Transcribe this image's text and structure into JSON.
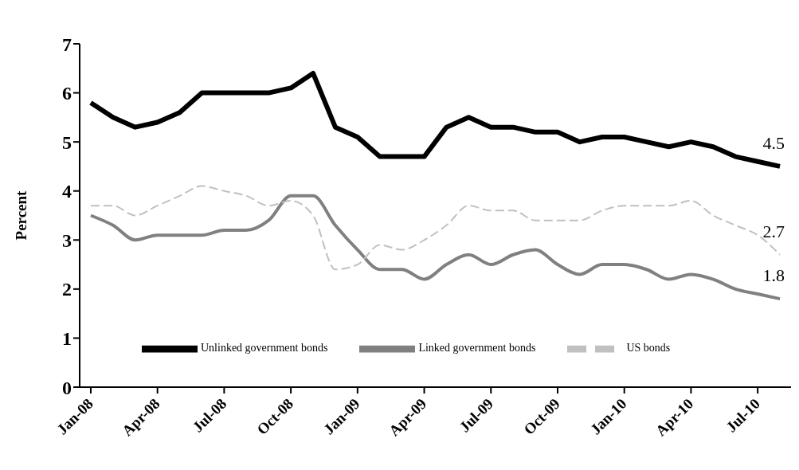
{
  "chart_data": {
    "type": "line",
    "ylabel": "Percent",
    "categories": [
      "Jan-08",
      null,
      null,
      "Apr-08",
      null,
      null,
      "Jul-08",
      null,
      null,
      "Oct-08",
      null,
      null,
      "Jan-09",
      null,
      null,
      "Apr-09",
      null,
      null,
      "Jul-09",
      null,
      null,
      "Oct-09",
      null,
      null,
      "Jan-10",
      null,
      null,
      "Apr-10",
      null,
      null,
      "Jul-10",
      null
    ],
    "series": [
      {
        "name": "Unlinked government bonds",
        "color": "#000000",
        "line_style": "solid",
        "values": [
          5.8,
          5.5,
          5.3,
          5.4,
          5.6,
          6.0,
          6.0,
          6.0,
          6.0,
          6.1,
          6.4,
          5.3,
          5.1,
          4.7,
          4.7,
          4.7,
          5.3,
          5.5,
          5.3,
          5.3,
          5.2,
          5.2,
          5.0,
          5.1,
          5.1,
          5.0,
          4.9,
          5.0,
          4.9,
          4.7,
          4.6,
          4.5
        ],
        "value_labels": [
          null,
          null,
          null,
          null,
          null,
          null,
          null,
          null,
          null,
          null,
          null,
          null,
          null,
          null,
          null,
          null,
          null,
          null,
          null,
          null,
          null,
          null,
          null,
          null,
          null,
          null,
          null,
          null,
          null,
          null,
          null,
          "4.5"
        ]
      },
      {
        "name": "Linked government bonds",
        "color": "#808080",
        "line_style": "solid",
        "values": [
          3.5,
          3.3,
          3.0,
          3.1,
          3.1,
          3.1,
          3.2,
          3.2,
          3.4,
          3.9,
          3.9,
          3.3,
          2.8,
          2.4,
          2.4,
          2.2,
          2.5,
          2.7,
          2.5,
          2.7,
          2.8,
          2.5,
          2.3,
          2.5,
          2.5,
          2.4,
          2.2,
          2.3,
          2.2,
          2.0,
          1.9,
          1.8
        ],
        "value_labels": [
          null,
          null,
          null,
          null,
          null,
          null,
          null,
          null,
          null,
          null,
          null,
          null,
          null,
          null,
          null,
          null,
          null,
          null,
          null,
          null,
          null,
          null,
          null,
          null,
          null,
          null,
          null,
          null,
          null,
          null,
          null,
          "1.8"
        ]
      },
      {
        "name": "US bonds",
        "color": "#c0c0c0",
        "line_style": "dashed",
        "values": [
          3.7,
          3.7,
          3.5,
          3.7,
          3.9,
          4.1,
          4.0,
          3.9,
          3.7,
          3.8,
          3.5,
          2.4,
          2.5,
          2.9,
          2.8,
          3.0,
          3.3,
          3.7,
          3.6,
          3.6,
          3.4,
          3.4,
          3.4,
          3.6,
          3.7,
          3.7,
          3.7,
          3.8,
          3.5,
          3.3,
          3.1,
          2.7
        ],
        "value_labels": [
          null,
          null,
          null,
          null,
          null,
          null,
          null,
          null,
          null,
          null,
          null,
          null,
          null,
          null,
          null,
          null,
          null,
          null,
          null,
          null,
          null,
          null,
          null,
          null,
          null,
          null,
          null,
          null,
          null,
          null,
          null,
          "2.7"
        ]
      }
    ],
    "ylim": [
      0,
      7
    ],
    "yticks": [
      0,
      1,
      2,
      3,
      4,
      5,
      6,
      7
    ],
    "grid": false,
    "legend": "bottom",
    "marker": "none"
  }
}
